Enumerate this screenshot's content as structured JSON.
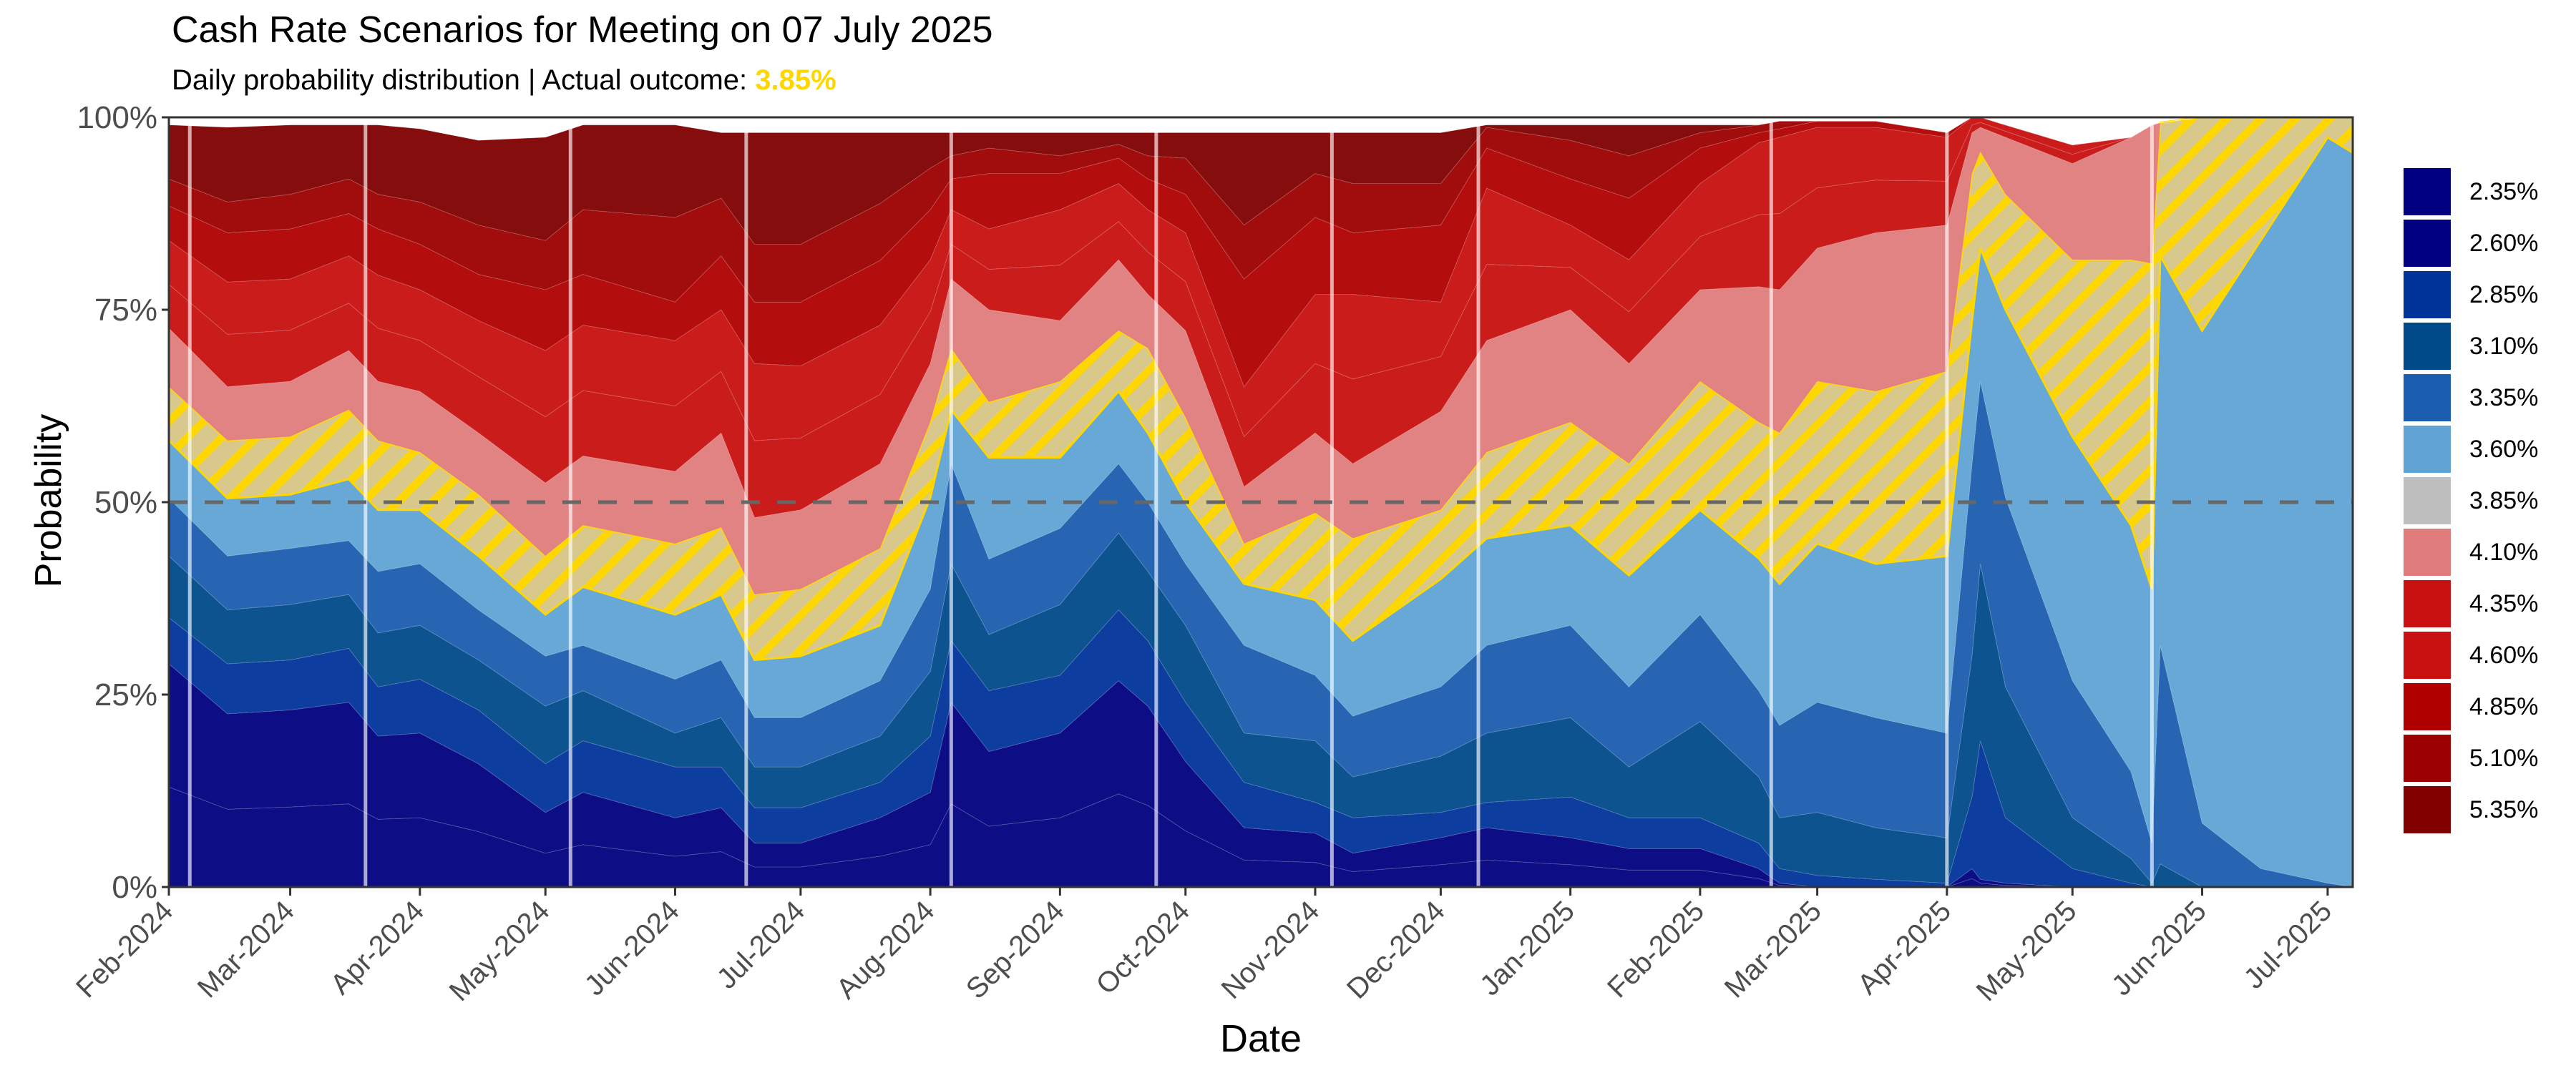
{
  "chart_data": {
    "type": "area",
    "stacked": true,
    "title": "Cash Rate Scenarios for Meeting on 07 July 2025",
    "subtitle_prefix": "Daily probability distribution | Actual outcome: ",
    "actual_outcome": "3.85%",
    "actual_outcome_color": "#FFD700",
    "xlabel": "Date",
    "ylabel": "Probability",
    "ylim": [
      0,
      100
    ],
    "y_ticks": [
      0,
      25,
      50,
      75,
      100
    ],
    "y_tick_labels": [
      "0%",
      "25%",
      "50%",
      "75%",
      "100%"
    ],
    "x_range": [
      "2024-02-01",
      "2025-07-07"
    ],
    "x_tick_labels": [
      "Feb-2024",
      "Mar-2024",
      "Apr-2024",
      "May-2024",
      "Jun-2024",
      "Jul-2024",
      "Aug-2024",
      "Sep-2024",
      "Oct-2024",
      "Nov-2024",
      "Dec-2024",
      "Jan-2025",
      "Feb-2025",
      "Mar-2025",
      "Apr-2025",
      "May-2025",
      "Jun-2025",
      "Jul-2025"
    ],
    "reference_line": 50,
    "meeting_dates": [
      "2024-02-06",
      "2024-03-19",
      "2024-05-07",
      "2024-06-18",
      "2024-08-06",
      "2024-09-24",
      "2024-11-05",
      "2024-12-10",
      "2025-02-18",
      "2025-04-01",
      "2025-05-20"
    ],
    "legend_position": "right",
    "highlight_series": "3.85%",
    "dates": [
      "2024-02-01",
      "2024-02-15",
      "2024-03-01",
      "2024-03-15",
      "2024-03-22",
      "2024-04-01",
      "2024-04-15",
      "2024-05-01",
      "2024-05-10",
      "2024-06-01",
      "2024-06-12",
      "2024-06-20",
      "2024-07-01",
      "2024-07-20",
      "2024-08-01",
      "2024-08-06",
      "2024-08-15",
      "2024-09-01",
      "2024-09-15",
      "2024-09-22",
      "2024-10-01",
      "2024-10-15",
      "2024-11-01",
      "2024-11-10",
      "2024-12-01",
      "2024-12-12",
      "2025-01-01",
      "2025-01-15",
      "2025-02-01",
      "2025-02-15",
      "2025-02-20",
      "2025-03-01",
      "2025-03-15",
      "2025-04-01",
      "2025-04-07",
      "2025-04-09",
      "2025-04-15",
      "2025-05-01",
      "2025-05-15",
      "2025-05-20",
      "2025-05-22",
      "2025-06-01",
      "2025-06-15",
      "2025-07-01",
      "2025-07-07"
    ],
    "series": [
      {
        "name": "2.35%",
        "color": "#000080",
        "values": [
          13,
          10.1,
          10.4,
          10.8,
          8.8,
          9,
          7.2,
          4.4,
          5.5,
          4,
          4.6,
          2.6,
          2.6,
          4,
          5.5,
          10.8,
          7.9,
          9,
          12.1,
          10.6,
          7.3,
          3.5,
          3.2,
          2,
          2.9,
          3.5,
          2.9,
          2.2,
          2.2,
          1.1,
          0.2,
          0,
          0,
          0,
          1.1,
          0.5,
          0.2,
          0,
          0,
          0,
          0,
          0,
          0,
          0,
          0
        ]
      },
      {
        "name": "2.60%",
        "color": "#000080",
        "values": [
          16,
          12.4,
          12.6,
          13.2,
          10.8,
          11,
          8.8,
          5.3,
          6.8,
          5,
          5.7,
          3.1,
          3.1,
          5,
          6.8,
          13.2,
          9.7,
          11,
          14.7,
          12.9,
          9,
          4.2,
          3.8,
          2.4,
          3.5,
          4.2,
          3.5,
          2.8,
          2.8,
          1.3,
          0.3,
          0,
          0,
          0,
          1.3,
          0.5,
          0.3,
          0,
          0,
          0,
          0,
          0,
          0,
          0,
          0
        ]
      },
      {
        "name": "2.85%",
        "color": "#00339A",
        "values": [
          6,
          6.5,
          6.5,
          7,
          6.4,
          7,
          7,
          6.3,
          6.7,
          6.6,
          5.3,
          4.6,
          4.6,
          4.6,
          7.3,
          8,
          7.9,
          7.5,
          9.2,
          8.5,
          7.7,
          5.9,
          4,
          4.6,
          3.3,
          3.3,
          5.3,
          4,
          4,
          3.3,
          1.9,
          1.5,
          1,
          0.5,
          9.3,
          18,
          8.5,
          2.4,
          0.5,
          0,
          0,
          0,
          0,
          0,
          0
        ]
      },
      {
        "name": "3.10%",
        "color": "#004A8A",
        "values": [
          8,
          7,
          7.2,
          7,
          7,
          7,
          6.5,
          7.5,
          6.5,
          4.4,
          6.4,
          5.3,
          5.3,
          6,
          8.4,
          10,
          7.3,
          9.2,
          10,
          9,
          10,
          6.4,
          8,
          5.3,
          7.3,
          9,
          10.3,
          6.6,
          12.5,
          8.6,
          6.6,
          8.2,
          6.7,
          5.9,
          18.3,
          23,
          17,
          6.6,
          3.2,
          0.5,
          3,
          0,
          0,
          0,
          0
        ]
      },
      {
        "name": "3.35%",
        "color": "#1B5DAF",
        "values": [
          7.5,
          7,
          7.3,
          7,
          8,
          8,
          6.5,
          6.5,
          5.9,
          7,
          7.5,
          6.4,
          6.4,
          7.2,
          10.7,
          13,
          9.8,
          9.9,
          9,
          9,
          8,
          11.4,
          8.5,
          7.9,
          9,
          11.4,
          12,
          10.4,
          13.9,
          11.2,
          12,
          14.3,
          14.3,
          13.6,
          25,
          23.7,
          24.6,
          17.8,
          11.3,
          5.2,
          28.4,
          8.3,
          2.4,
          0.5,
          0
        ]
      },
      {
        "name": "3.60%",
        "color": "#5FA3D5",
        "values": [
          7.5,
          7.5,
          7,
          8,
          8,
          7,
          7,
          5.4,
          7.6,
          8.4,
          8.5,
          7.5,
          8,
          7.2,
          11.9,
          7,
          13.2,
          9.2,
          9.4,
          9,
          8,
          8,
          9.8,
          9.8,
          14,
          13.9,
          13,
          14.5,
          13.6,
          17.2,
          18.4,
          20.6,
          20,
          23,
          18.6,
          17.3,
          24.4,
          31.7,
          32,
          33,
          50.6,
          64,
          81.6,
          96.9,
          95.4
        ]
      },
      {
        "name": "3.85%",
        "color": "#BEBEBE",
        "values": [
          7,
          7.5,
          7.5,
          9,
          9,
          7.5,
          8,
          7.6,
          8,
          9.2,
          8.7,
          8.5,
          8.7,
          10,
          9.8,
          8,
          7.2,
          9.9,
          7.9,
          11,
          11,
          5.2,
          11.3,
          13.3,
          9,
          11.2,
          13.4,
          14.5,
          16.7,
          17.7,
          19.6,
          21.1,
          22.4,
          24,
          19.1,
          12.5,
          15,
          23,
          34.5,
          42.3,
          17.3,
          27.7,
          16,
          2.6,
          4.6
        ]
      },
      {
        "name": "4.10%",
        "color": "#E07C7C",
        "values": [
          7.6,
          7,
          7.2,
          7.7,
          7.7,
          7.9,
          8,
          9.5,
          9,
          9.4,
          12.3,
          10,
          10.3,
          11,
          7.6,
          9,
          12,
          7.9,
          9.2,
          7,
          11.3,
          7.4,
          10.4,
          9.7,
          12.8,
          14.5,
          14.6,
          13,
          11.9,
          17.6,
          18.6,
          17.3,
          20.6,
          19,
          5.3,
          3.2,
          7.4,
          12.5,
          15.9,
          18,
          0,
          0,
          0,
          0,
          0
        ]
      },
      {
        "name": "4.35%",
        "color": "#C81010",
        "values": [
          5.7,
          6.8,
          6.65,
          6.15,
          6.9,
          6.6,
          7.3,
          8.6,
          8.5,
          8.5,
          8,
          10,
          9.35,
          9,
          6.75,
          4.5,
          5.25,
          7.2,
          4.95,
          5.5,
          6.35,
          6.5,
          9,
          11,
          7.1,
          9.9,
          5.5,
          6.75,
          6.9,
          9.35,
          9.9,
          7.85,
          6.85,
          5.7,
          1,
          0.65,
          0.8,
          1.2,
          0,
          0,
          0,
          0,
          0,
          0,
          0
        ]
      },
      {
        "name": "4.60%",
        "color": "#C81010",
        "values": [
          5.7,
          6.8,
          6.65,
          6.15,
          6.9,
          6.6,
          7.3,
          8.6,
          8.5,
          8.5,
          8,
          10,
          9.35,
          9,
          6.75,
          4.5,
          5.25,
          7.2,
          4.95,
          5.5,
          6.35,
          6.5,
          9,
          11,
          7.1,
          9.9,
          5.5,
          6.75,
          6.9,
          9.35,
          9.9,
          7.85,
          6.85,
          5.7,
          1,
          0.65,
          0.8,
          1.2,
          0,
          0,
          0,
          0,
          0,
          0,
          0
        ]
      },
      {
        "name": "4.85%",
        "color": "#B00000",
        "values": [
          4.5,
          6.4,
          6.5,
          5.5,
          6,
          5.9,
          6,
          7.9,
          6.6,
          5,
          7,
          8,
          8.3,
          8.4,
          6.5,
          4,
          7.2,
          4.7,
          3.3,
          4,
          5,
          14,
          10,
          8,
          10,
          5.2,
          6,
          8,
          4.6,
          1.3,
          1.1,
          0.8,
          0.8,
          0.6,
          0,
          0,
          0,
          0,
          0,
          0,
          0,
          0,
          0,
          0,
          0
        ]
      },
      {
        "name": "5.10%",
        "color": "#9C0000",
        "values": [
          3.5,
          4,
          4.5,
          4.5,
          4.5,
          5.5,
          6.4,
          6.4,
          8.4,
          11,
          7.5,
          7.5,
          7.5,
          7.4,
          5.4,
          3,
          3.3,
          2.3,
          1.8,
          3,
          4.7,
          7,
          5.7,
          6.4,
          5.4,
          2.7,
          5,
          5.5,
          2,
          1,
          1,
          0,
          0,
          0,
          0,
          0,
          0,
          0,
          0,
          0,
          0,
          0,
          0,
          0,
          0
        ]
      },
      {
        "name": "5.35%",
        "color": "#800000",
        "values": [
          7,
          9.7,
          9,
          7,
          9,
          9.5,
          11,
          13.4,
          11,
          12,
          8.5,
          14.5,
          14.5,
          9.2,
          4.6,
          3,
          2,
          3,
          1.5,
          3,
          3.3,
          12,
          5.3,
          6.6,
          6.6,
          0.3,
          2,
          4,
          1,
          0,
          0,
          0,
          0,
          0,
          0,
          0,
          0,
          0,
          0,
          0,
          0,
          0,
          0,
          0,
          0
        ]
      }
    ]
  }
}
